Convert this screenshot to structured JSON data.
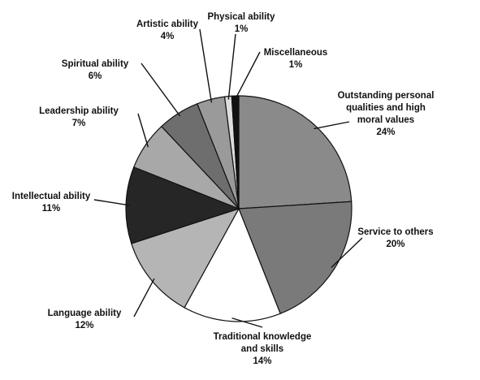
{
  "chart_data": {
    "type": "pie",
    "title": "",
    "slices": [
      {
        "label": "Outstanding personal qualities and high moral values",
        "label_lines": [
          "Outstanding personal",
          "qualities and high",
          "moral values"
        ],
        "value_text": "24%",
        "value": 24,
        "color": "#8a8a8a"
      },
      {
        "label": "Service to others",
        "label_lines": [
          "Service to others"
        ],
        "value_text": "20%",
        "value": 20,
        "color": "#7a7a7a"
      },
      {
        "label": "Traditional knowledge and skills",
        "label_lines": [
          "Traditional knowledge",
          "and skills"
        ],
        "value_text": "14%",
        "value": 14,
        "color": "#ffffff"
      },
      {
        "label": "Language ability",
        "label_lines": [
          "Language ability"
        ],
        "value_text": "12%",
        "value": 12,
        "color": "#b5b5b5"
      },
      {
        "label": "Intellectual ability",
        "label_lines": [
          "Intellectual ability"
        ],
        "value_text": "11%",
        "value": 11,
        "color": "#262626"
      },
      {
        "label": "Leadership ability",
        "label_lines": [
          "Leadership ability"
        ],
        "value_text": "7%",
        "value": 7,
        "color": "#a8a8a8"
      },
      {
        "label": "Spiritual ability",
        "label_lines": [
          "Spiritual ability"
        ],
        "value_text": "6%",
        "value": 6,
        "color": "#6e6e6e"
      },
      {
        "label": "Artistic ability",
        "label_lines": [
          "Artistic ability"
        ],
        "value_text": "4%",
        "value": 4,
        "color": "#9a9a9a"
      },
      {
        "label": "Physical ability",
        "label_lines": [
          "Physical ability"
        ],
        "value_text": "1%",
        "value": 1,
        "color": "#dedede"
      },
      {
        "label": "Miscellaneous",
        "label_lines": [
          "Miscellaneous"
        ],
        "value_text": "1%",
        "value": 1,
        "color": "#111111"
      }
    ]
  }
}
